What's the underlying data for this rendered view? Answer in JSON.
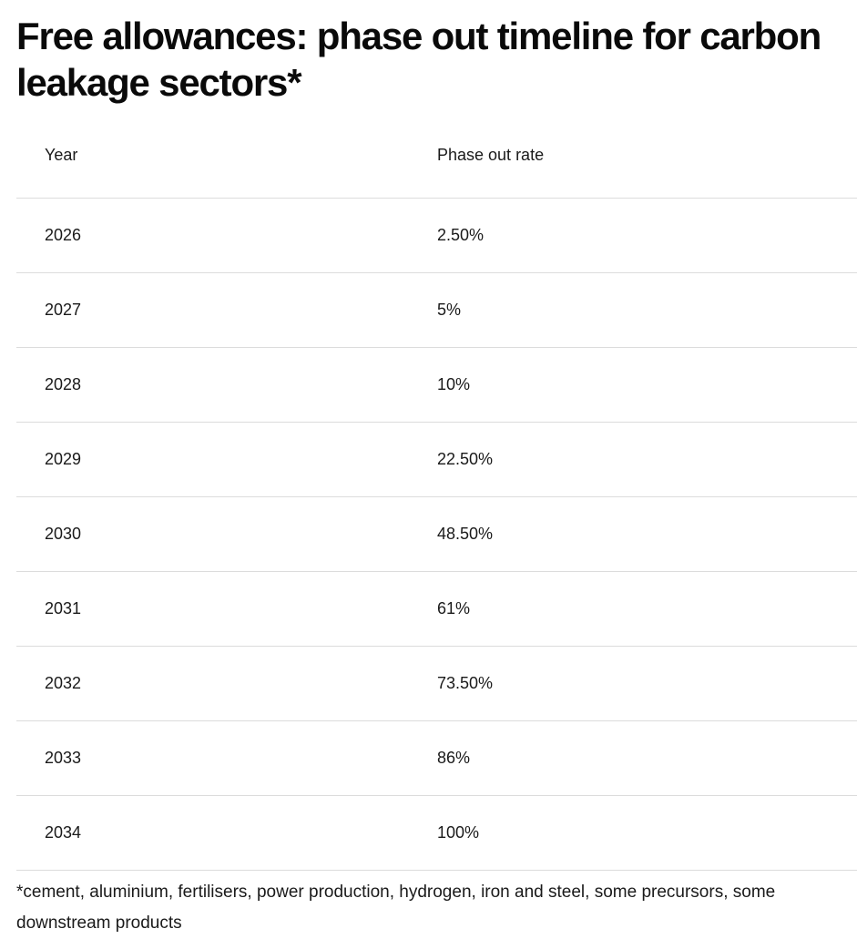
{
  "title": "Free allowances: phase out timeline for carbon leakage sectors*",
  "table": {
    "headers": [
      "Year",
      "Phase out rate"
    ],
    "rows": [
      [
        "2026",
        "2.50%"
      ],
      [
        "2027",
        "5%"
      ],
      [
        "2028",
        "10%"
      ],
      [
        "2029",
        "22.50%"
      ],
      [
        "2030",
        "48.50%"
      ],
      [
        "2031",
        "61%"
      ],
      [
        "2032",
        "73.50%"
      ],
      [
        "2033",
        "86%"
      ],
      [
        "2034",
        "100%"
      ]
    ]
  },
  "footnote": "*cement, aluminium, fertilisers, power production, hydrogen, iron and steel, some precursors, some downstream products"
}
